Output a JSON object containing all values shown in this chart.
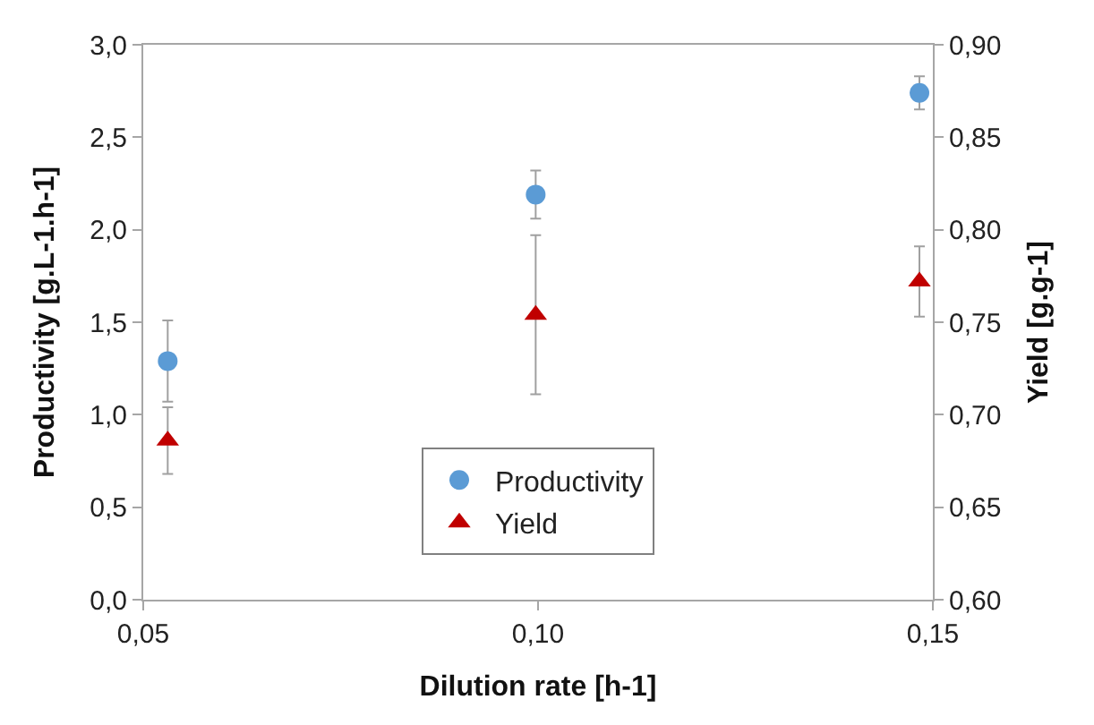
{
  "chart_data": {
    "type": "scatter",
    "xlabel": "Dilution rate [h-1]",
    "ylabel": "Productivity [g.L-1.h-1]",
    "y2label": "Yield [g.g-1]",
    "x": [
      0.0531,
      0.0997,
      0.1483
    ],
    "series": [
      {
        "name": "Productivity",
        "color": "#5b9bd5",
        "marker": "circle",
        "values": [
          1.29,
          2.19,
          2.74
        ],
        "errors": [
          0.22,
          0.13,
          0.09
        ]
      },
      {
        "name": "Yield",
        "color": "#c00000",
        "marker": "triangle",
        "axis": "y2",
        "values": [
          0.686,
          0.754,
          0.772
        ],
        "errors": [
          0.018,
          0.043,
          0.019
        ]
      }
    ],
    "xlim": [
      0.05,
      0.15
    ],
    "xticks": [
      {
        "value": 0.05,
        "label": "0,05"
      },
      {
        "value": 0.1,
        "label": "0,10"
      },
      {
        "value": 0.15,
        "label": "0,15"
      }
    ],
    "ylim": [
      0,
      3
    ],
    "yticks": [
      {
        "value": 0,
        "label": "0,0"
      },
      {
        "value": 0.5,
        "label": "0,5"
      },
      {
        "value": 1,
        "label": "1,0"
      },
      {
        "value": 1.5,
        "label": "1,5"
      },
      {
        "value": 2,
        "label": "2,0"
      },
      {
        "value": 2.5,
        "label": "2,5"
      },
      {
        "value": 3,
        "label": "3,0"
      }
    ],
    "y2lim": [
      0.6,
      0.9
    ],
    "y2ticks": [
      {
        "value": 0.6,
        "label": "0,60"
      },
      {
        "value": 0.65,
        "label": "0,65"
      },
      {
        "value": 0.7,
        "label": "0,70"
      },
      {
        "value": 0.75,
        "label": "0,75"
      },
      {
        "value": 0.8,
        "label": "0,80"
      },
      {
        "value": 0.85,
        "label": "0,85"
      },
      {
        "value": 0.9,
        "label": "0,90"
      }
    ],
    "legend": "bottom"
  }
}
